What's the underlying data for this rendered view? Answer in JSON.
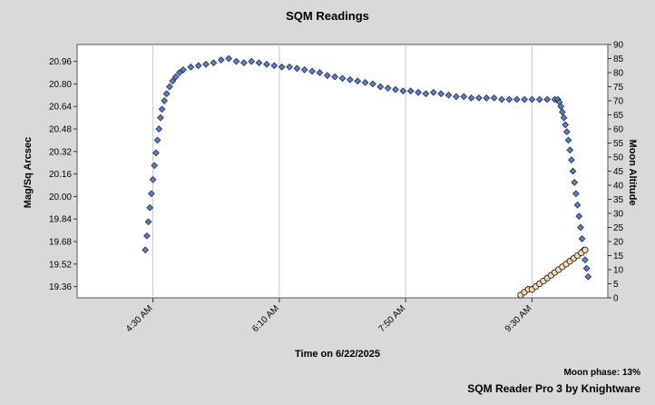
{
  "chart_data": {
    "type": "scatter",
    "title": "SQM Readings",
    "xlabel": "Time on 6/22/2025",
    "ylabel_left": "Mag/Sq Arcsec",
    "ylabel_right": "Moon Altitude",
    "footer": "SQM Reader Pro 3 by Knightware",
    "moon_phase_text": "Moon phase: 13%",
    "grid": true,
    "x_range_hours": [
      3.5,
      10.5
    ],
    "x_ticks": [
      {
        "label": "4:30 AM",
        "hour": 4.5
      },
      {
        "label": "6:10 AM",
        "hour": 6.1667
      },
      {
        "label": "7:50 AM",
        "hour": 7.8333
      },
      {
        "label": "9:30 AM",
        "hour": 9.5
      }
    ],
    "ylim_left": [
      19.28,
      21.08
    ],
    "y_ticks_left": [
      "20.96",
      "20.80",
      "20.64",
      "20.48",
      "20.32",
      "20.16",
      "20.00",
      "19.84",
      "19.68",
      "19.52",
      "19.36"
    ],
    "ylim_right": [
      0,
      90
    ],
    "y_ticks_right": [
      "90",
      "85",
      "80",
      "75",
      "70",
      "65",
      "60",
      "55",
      "50",
      "45",
      "40",
      "35",
      "30",
      "25",
      "20",
      "15",
      "10",
      "5",
      "0"
    ],
    "colors": {
      "sqm_marker": "#5f7fbf",
      "moon_marker": "#f7d9b6",
      "plot_bg": "#ffffff",
      "grid": "#c8c8c8",
      "page_bg": "#d9d9d9"
    },
    "series": [
      {
        "name": "SQM",
        "axis": "left",
        "marker": "diamond",
        "points": [
          [
            4.4,
            19.62
          ],
          [
            4.42,
            19.72
          ],
          [
            4.44,
            19.82
          ],
          [
            4.46,
            19.92
          ],
          [
            4.48,
            20.02
          ],
          [
            4.5,
            20.12
          ],
          [
            4.52,
            20.22
          ],
          [
            4.54,
            20.31
          ],
          [
            4.56,
            20.4
          ],
          [
            4.58,
            20.48
          ],
          [
            4.6,
            20.56
          ],
          [
            4.62,
            20.62
          ],
          [
            4.65,
            20.68
          ],
          [
            4.68,
            20.73
          ],
          [
            4.72,
            20.78
          ],
          [
            4.76,
            20.82
          ],
          [
            4.8,
            20.85
          ],
          [
            4.85,
            20.88
          ],
          [
            4.9,
            20.9
          ],
          [
            5.0,
            20.92
          ],
          [
            5.1,
            20.93
          ],
          [
            5.2,
            20.94
          ],
          [
            5.3,
            20.95
          ],
          [
            5.4,
            20.97
          ],
          [
            5.5,
            20.98
          ],
          [
            5.6,
            20.96
          ],
          [
            5.7,
            20.95
          ],
          [
            5.8,
            20.96
          ],
          [
            5.9,
            20.95
          ],
          [
            6.0,
            20.94
          ],
          [
            6.1,
            20.93
          ],
          [
            6.2,
            20.92
          ],
          [
            6.3,
            20.92
          ],
          [
            6.4,
            20.91
          ],
          [
            6.5,
            20.9
          ],
          [
            6.6,
            20.89
          ],
          [
            6.7,
            20.88
          ],
          [
            6.8,
            20.86
          ],
          [
            6.9,
            20.85
          ],
          [
            7.0,
            20.84
          ],
          [
            7.1,
            20.83
          ],
          [
            7.2,
            20.82
          ],
          [
            7.3,
            20.81
          ],
          [
            7.4,
            20.8
          ],
          [
            7.5,
            20.78
          ],
          [
            7.6,
            20.77
          ],
          [
            7.7,
            20.76
          ],
          [
            7.8,
            20.75
          ],
          [
            7.9,
            20.75
          ],
          [
            8.0,
            20.74
          ],
          [
            8.1,
            20.73
          ],
          [
            8.2,
            20.74
          ],
          [
            8.3,
            20.73
          ],
          [
            8.4,
            20.72
          ],
          [
            8.5,
            20.71
          ],
          [
            8.6,
            20.71
          ],
          [
            8.7,
            20.7
          ],
          [
            8.8,
            20.7
          ],
          [
            8.9,
            20.7
          ],
          [
            9.0,
            20.7
          ],
          [
            9.1,
            20.69
          ],
          [
            9.2,
            20.69
          ],
          [
            9.3,
            20.69
          ],
          [
            9.4,
            20.69
          ],
          [
            9.5,
            20.69
          ],
          [
            9.6,
            20.69
          ],
          [
            9.7,
            20.69
          ],
          [
            9.8,
            20.69
          ],
          [
            9.84,
            20.69
          ],
          [
            9.86,
            20.67
          ],
          [
            9.88,
            20.64
          ],
          [
            9.9,
            20.6
          ],
          [
            9.92,
            20.56
          ],
          [
            9.94,
            20.51
          ],
          [
            9.96,
            20.46
          ],
          [
            9.98,
            20.4
          ],
          [
            10.0,
            20.33
          ],
          [
            10.02,
            20.26
          ],
          [
            10.04,
            20.18
          ],
          [
            10.06,
            20.1
          ],
          [
            10.08,
            20.02
          ],
          [
            10.1,
            19.94
          ],
          [
            10.12,
            19.86
          ],
          [
            10.14,
            19.78
          ],
          [
            10.16,
            19.7
          ],
          [
            10.18,
            19.62
          ],
          [
            10.2,
            19.55
          ],
          [
            10.22,
            19.49
          ],
          [
            10.24,
            19.43
          ]
        ]
      },
      {
        "name": "Moon",
        "axis": "right",
        "marker": "circle",
        "points": [
          [
            9.35,
            1
          ],
          [
            9.4,
            2
          ],
          [
            9.45,
            3
          ],
          [
            9.5,
            3
          ],
          [
            9.55,
            4
          ],
          [
            9.6,
            5
          ],
          [
            9.65,
            6
          ],
          [
            9.7,
            7
          ],
          [
            9.75,
            8
          ],
          [
            9.8,
            9
          ],
          [
            9.85,
            10
          ],
          [
            9.9,
            11
          ],
          [
            9.95,
            12
          ],
          [
            10.0,
            13
          ],
          [
            10.05,
            14
          ],
          [
            10.1,
            15
          ],
          [
            10.15,
            16
          ],
          [
            10.2,
            17
          ]
        ]
      }
    ]
  }
}
